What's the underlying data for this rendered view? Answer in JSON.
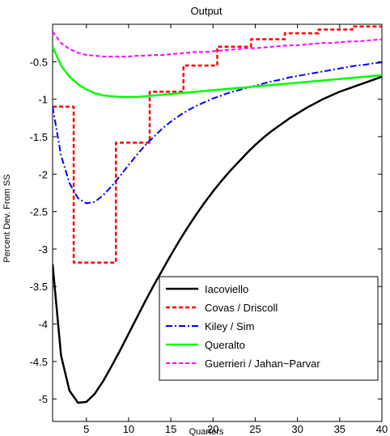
{
  "chart_data": {
    "type": "line",
    "title": "Output",
    "xlabel": "Quarters",
    "ylabel": "Percent Dev. From SS",
    "xlim": [
      1,
      40
    ],
    "ylim": [
      -5.3,
      0
    ],
    "xticks": [
      5,
      10,
      15,
      20,
      25,
      30,
      35,
      40
    ],
    "xtick_labels": [
      "5",
      "10",
      "15",
      "20",
      "25",
      "30",
      "35",
      "40"
    ],
    "yticks": [
      -5,
      -4.5,
      -4,
      -3.5,
      -3,
      -2.5,
      -2,
      -1.5,
      -1,
      -0.5
    ],
    "ytick_labels": [
      "-5",
      "-4.5",
      "-4",
      "-3.5",
      "-3",
      "-2.5",
      "-2",
      "-1.5",
      "-1",
      "-0.5"
    ],
    "grid": false,
    "legend_position": "bottom-right",
    "series": [
      {
        "name": "Iacoviello",
        "color": "#000000",
        "style": "solid",
        "width": 2.5,
        "x": [
          1,
          2,
          3,
          4,
          5,
          6,
          7,
          8,
          9,
          10,
          11,
          12,
          13,
          14,
          15,
          16,
          17,
          18,
          19,
          20,
          21,
          22,
          23,
          24,
          25,
          26,
          27,
          28,
          29,
          30,
          31,
          32,
          33,
          34,
          35,
          36,
          37,
          38,
          39,
          40
        ],
        "y": [
          -3.2,
          -4.42,
          -4.89,
          -5.05,
          -5.04,
          -4.93,
          -4.76,
          -4.56,
          -4.35,
          -4.13,
          -3.91,
          -3.69,
          -3.48,
          -3.28,
          -3.08,
          -2.89,
          -2.71,
          -2.54,
          -2.38,
          -2.23,
          -2.09,
          -1.96,
          -1.84,
          -1.72,
          -1.61,
          -1.51,
          -1.42,
          -1.34,
          -1.26,
          -1.19,
          -1.12,
          -1.06,
          -1.0,
          -0.95,
          -0.9,
          -0.86,
          -0.82,
          -0.78,
          -0.74,
          -0.7
        ]
      },
      {
        "name": "Covas / Driscoll",
        "color": "#ff0000",
        "style": "dashed",
        "width": 2.5,
        "x": [
          1,
          2,
          3,
          4,
          5,
          6,
          7,
          8,
          9,
          10,
          11,
          12,
          13,
          14,
          15,
          16,
          17,
          18,
          19,
          20,
          21,
          22,
          23,
          24,
          25,
          26,
          27,
          28,
          29,
          30,
          31,
          32,
          33,
          34,
          35,
          36,
          37,
          38,
          39,
          40
        ],
        "y": [
          -1.1,
          -1.1,
          -1.1,
          -3.18,
          -3.18,
          -3.18,
          -3.18,
          -3.18,
          -1.58,
          -1.58,
          -1.58,
          -1.58,
          -0.9,
          -0.9,
          -0.9,
          -0.9,
          -0.55,
          -0.55,
          -0.55,
          -0.55,
          -0.3,
          -0.3,
          -0.3,
          -0.3,
          -0.2,
          -0.2,
          -0.2,
          -0.2,
          -0.12,
          -0.12,
          -0.12,
          -0.12,
          -0.07,
          -0.07,
          -0.07,
          -0.07,
          -0.03,
          -0.03,
          -0.03,
          -0.03
        ]
      },
      {
        "name": "Kiley / Sim",
        "color": "#0000ff",
        "style": "dashdot",
        "width": 2,
        "x": [
          1,
          2,
          3,
          4,
          5,
          6,
          7,
          8,
          9,
          10,
          11,
          12,
          13,
          14,
          15,
          16,
          17,
          18,
          19,
          20,
          21,
          22,
          23,
          24,
          25,
          26,
          27,
          28,
          29,
          30,
          31,
          32,
          33,
          34,
          35,
          36,
          37,
          38,
          39,
          40
        ],
        "y": [
          -1.1,
          -1.75,
          -2.12,
          -2.32,
          -2.39,
          -2.37,
          -2.28,
          -2.16,
          -2.02,
          -1.88,
          -1.74,
          -1.61,
          -1.5,
          -1.39,
          -1.3,
          -1.22,
          -1.15,
          -1.09,
          -1.04,
          -0.99,
          -0.95,
          -0.91,
          -0.88,
          -0.85,
          -0.82,
          -0.79,
          -0.76,
          -0.74,
          -0.71,
          -0.69,
          -0.67,
          -0.65,
          -0.63,
          -0.61,
          -0.59,
          -0.57,
          -0.55,
          -0.54,
          -0.52,
          -0.51
        ]
      },
      {
        "name": "Queralto",
        "color": "#00ff00",
        "style": "solid",
        "width": 2.5,
        "x": [
          1,
          2,
          3,
          4,
          5,
          6,
          7,
          8,
          9,
          10,
          11,
          12,
          13,
          14,
          15,
          16,
          17,
          18,
          19,
          20,
          21,
          22,
          23,
          24,
          25,
          26,
          27,
          28,
          29,
          30,
          31,
          32,
          33,
          34,
          35,
          36,
          37,
          38,
          39,
          40
        ],
        "y": [
          -0.3,
          -0.55,
          -0.7,
          -0.8,
          -0.87,
          -0.92,
          -0.95,
          -0.96,
          -0.97,
          -0.97,
          -0.97,
          -0.96,
          -0.95,
          -0.94,
          -0.93,
          -0.92,
          -0.91,
          -0.9,
          -0.89,
          -0.88,
          -0.87,
          -0.86,
          -0.85,
          -0.84,
          -0.83,
          -0.82,
          -0.81,
          -0.8,
          -0.79,
          -0.78,
          -0.77,
          -0.76,
          -0.75,
          -0.74,
          -0.73,
          -0.72,
          -0.71,
          -0.7,
          -0.69,
          -0.68
        ]
      },
      {
        "name": "Guerrieri / Jahan−Parvar",
        "color": "#ff00ff",
        "style": "dashed",
        "width": 2,
        "x": [
          1,
          2,
          3,
          4,
          5,
          6,
          7,
          8,
          9,
          10,
          11,
          12,
          13,
          14,
          15,
          16,
          17,
          18,
          19,
          20,
          21,
          22,
          23,
          24,
          25,
          26,
          27,
          28,
          29,
          30,
          31,
          32,
          33,
          34,
          35,
          36,
          37,
          38,
          39,
          40
        ],
        "y": [
          -0.1,
          -0.25,
          -0.33,
          -0.38,
          -0.41,
          -0.42,
          -0.43,
          -0.43,
          -0.43,
          -0.43,
          -0.42,
          -0.42,
          -0.41,
          -0.41,
          -0.4,
          -0.39,
          -0.38,
          -0.37,
          -0.37,
          -0.36,
          -0.35,
          -0.34,
          -0.33,
          -0.32,
          -0.32,
          -0.31,
          -0.3,
          -0.29,
          -0.28,
          -0.28,
          -0.27,
          -0.26,
          -0.25,
          -0.25,
          -0.24,
          -0.23,
          -0.23,
          -0.22,
          -0.21,
          -0.2
        ]
      }
    ]
  }
}
